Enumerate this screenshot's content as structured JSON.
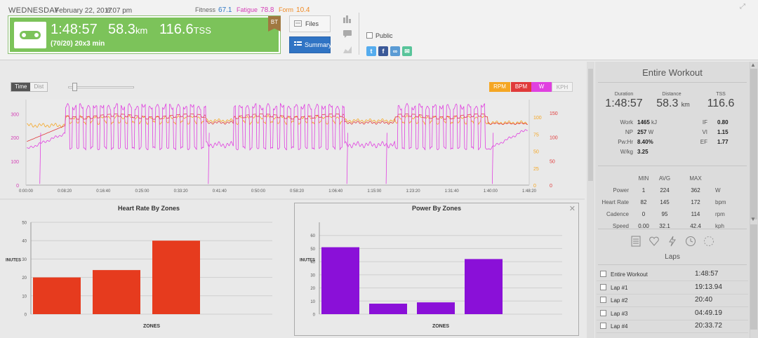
{
  "header": {
    "day": "WEDNESDAY",
    "date": "February 22, 2017",
    "time": "6:07 pm",
    "fitness_label": "Fitness",
    "fitness_value": "67.1",
    "fatigue_label": "Fatigue",
    "fatigue_value": "78.8",
    "form_label": "Form",
    "form_value": "10.4",
    "duration": "1:48:57",
    "distance": "58.3",
    "distance_unit": "km",
    "tss": "116.6",
    "tss_unit": "TSS",
    "workout_title": "(70/20) 20x3 min",
    "badge": "BT",
    "files_label": "Files",
    "summary_label": "Summary",
    "public_label": "Public",
    "accent_green": "#7cc35a",
    "accent_blue": "#3074c4"
  },
  "graph": {
    "toggle_time": "Time",
    "toggle_dist": "Dist",
    "legend": [
      "RPM",
      "BPM",
      "W",
      "KPH"
    ],
    "legend_colors": [
      "#f5a623",
      "#e03a3a",
      "#e040e0",
      "#f2f2f2"
    ]
  },
  "chart_data": [
    {
      "type": "line",
      "title": "",
      "x_ticks": [
        "0:00:00",
        "0:08:20",
        "0:16:40",
        "0:25:00",
        "0:33:20",
        "0:41:40",
        "0:50:00",
        "0:58:20",
        "1:06:40",
        "1:15:00",
        "1:23:20",
        "1:31:40",
        "1:40:00",
        "1:48:20"
      ],
      "left_axis_ticks": [
        0,
        100,
        200,
        300
      ],
      "right_axis_inner_ticks": [
        0,
        25,
        50,
        75,
        100
      ],
      "right_axis_outer_ticks": [
        0,
        50,
        100,
        150
      ],
      "series": [
        {
          "name": "W",
          "color": "#e040e0"
        },
        {
          "name": "BPM",
          "color": "#e03a3a"
        },
        {
          "name": "RPM",
          "color": "#f5a623"
        }
      ]
    },
    {
      "type": "bar",
      "title": "Heart Rate By Zones",
      "xlabel": "ZONES",
      "ylabel": "INUTES",
      "ylim": [
        0,
        50
      ],
      "y_ticks": [
        0,
        10,
        20,
        30,
        40,
        50
      ],
      "values": [
        20,
        24,
        40
      ],
      "color": "#e63b1e"
    },
    {
      "type": "bar",
      "title": "Power By Zones",
      "xlabel": "ZONES",
      "ylabel": "INUTES",
      "ylim": [
        0,
        70
      ],
      "y_ticks": [
        0,
        10,
        20,
        30,
        40,
        50,
        60
      ],
      "values": [
        51,
        8,
        9,
        42
      ],
      "color": "#8a10d8"
    }
  ],
  "summary": {
    "heading": "Entire Workout",
    "duration_label": "Duration",
    "duration": "1:48:57",
    "distance_label": "Distance",
    "distance": "58.3",
    "distance_unit": "km",
    "tss_label": "TSS",
    "tss": "116.6",
    "left_kv": [
      {
        "k": "Work",
        "v": "1465",
        "u": "kJ"
      },
      {
        "k": "NP",
        "v": "257",
        "u": "W"
      },
      {
        "k": "Pw:Hr",
        "v": "8.40%",
        "u": ""
      },
      {
        "k": "W/kg",
        "v": "3.25",
        "u": ""
      }
    ],
    "right_kv": [
      {
        "k": "IF",
        "v": "0.80"
      },
      {
        "k": "VI",
        "v": "1.15"
      },
      {
        "k": "EF",
        "v": "1.77"
      }
    ],
    "stats_headers": [
      "MIN",
      "AVG",
      "MAX"
    ],
    "stats_rows": [
      {
        "label": "Power",
        "min": "1",
        "avg": "224",
        "max": "362",
        "unit": "W"
      },
      {
        "label": "Heart Rate",
        "min": "82",
        "avg": "145",
        "max": "172",
        "unit": "bpm"
      },
      {
        "label": "Cadence",
        "min": "0",
        "avg": "95",
        "max": "114",
        "unit": "rpm"
      },
      {
        "label": "Speed",
        "min": "0.00",
        "avg": "32.1",
        "max": "42.4",
        "unit": "kph"
      }
    ],
    "laps_heading": "Laps",
    "laps": [
      {
        "name": "Entire Workout",
        "time": "1:48:57"
      },
      {
        "name": "Lap #1",
        "time": "19:13.94"
      },
      {
        "name": "Lap #2",
        "time": "20:40"
      },
      {
        "name": "Lap #3",
        "time": "04:49.19"
      },
      {
        "name": "Lap #4",
        "time": "20:33.72"
      }
    ]
  }
}
